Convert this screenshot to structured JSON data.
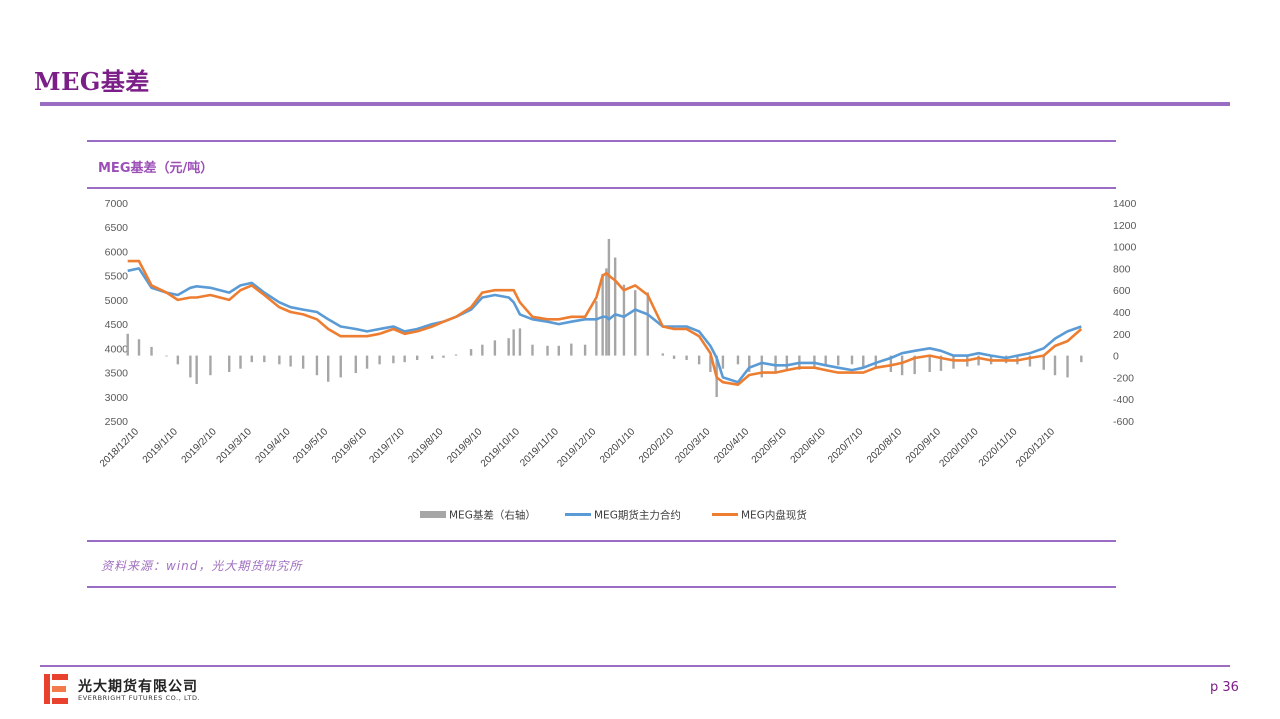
{
  "page": {
    "title": "MEG基差",
    "source": "资料来源：wind，光大期货研究所",
    "page_number": "p 36",
    "company_cn": "光大期货有限公司",
    "company_en": "EVERBRIGHT FUTURES CO., LTD."
  },
  "colors": {
    "title": "#7b1e87",
    "rule": "#9b6cc4",
    "basis": "#a6a6a6",
    "futures": "#5b9bd5",
    "spot": "#ed7d31",
    "logo": "#e8422f"
  },
  "chart_data": {
    "type": "line",
    "title": "MEG基差（元/吨）",
    "x_tick_labels": [
      "2018/12/10",
      "2019/1/10",
      "2019/2/10",
      "2019/3/10",
      "2019/4/10",
      "2019/5/10",
      "2019/6/10",
      "2019/7/10",
      "2019/8/10",
      "2019/9/10",
      "2019/10/10",
      "2019/11/10",
      "2019/12/10",
      "2020/1/10",
      "2020/2/10",
      "2020/3/10",
      "2020/4/10",
      "2020/5/10",
      "2020/6/10",
      "2020/7/10",
      "2020/8/10",
      "2020/9/10",
      "2020/10/10",
      "2020/11/10",
      "2020/12/10"
    ],
    "y_left": {
      "min": 2500,
      "max": 7000,
      "ticks": [
        2500,
        3000,
        3500,
        4000,
        4500,
        5000,
        5500,
        6000,
        6500,
        7000
      ]
    },
    "y_right": {
      "min": -600,
      "max": 1400,
      "ticks": [
        -600,
        -400,
        -200,
        0,
        200,
        400,
        600,
        800,
        1000,
        1200,
        1400
      ]
    },
    "legend_position": "bottom",
    "series": [
      {
        "name": "MEG基差（右轴）",
        "type": "bar",
        "axis": "right",
        "points": [
          [
            "2018-12-01",
            200
          ],
          [
            "2018-12-10",
            150
          ],
          [
            "2018-12-20",
            80
          ],
          [
            "2019-01-01",
            0
          ],
          [
            "2019-01-10",
            -80
          ],
          [
            "2019-01-20",
            -200
          ],
          [
            "2019-01-25",
            -260
          ],
          [
            "2019-02-05",
            -180
          ],
          [
            "2019-02-20",
            -150
          ],
          [
            "2019-03-01",
            -120
          ],
          [
            "2019-03-10",
            -60
          ],
          [
            "2019-03-20",
            -60
          ],
          [
            "2019-04-01",
            -80
          ],
          [
            "2019-04-10",
            -100
          ],
          [
            "2019-04-20",
            -120
          ],
          [
            "2019-05-01",
            -180
          ],
          [
            "2019-05-10",
            -240
          ],
          [
            "2019-05-20",
            -200
          ],
          [
            "2019-06-01",
            -160
          ],
          [
            "2019-06-10",
            -120
          ],
          [
            "2019-06-20",
            -80
          ],
          [
            "2019-07-01",
            -70
          ],
          [
            "2019-07-10",
            -60
          ],
          [
            "2019-07-20",
            -40
          ],
          [
            "2019-08-01",
            -30
          ],
          [
            "2019-08-10",
            -20
          ],
          [
            "2019-08-20",
            10
          ],
          [
            "2019-09-01",
            60
          ],
          [
            "2019-09-10",
            100
          ],
          [
            "2019-09-20",
            140
          ],
          [
            "2019-10-01",
            160
          ],
          [
            "2019-10-05",
            240
          ],
          [
            "2019-10-10",
            250
          ],
          [
            "2019-10-20",
            100
          ],
          [
            "2019-11-01",
            90
          ],
          [
            "2019-11-10",
            90
          ],
          [
            "2019-11-20",
            110
          ],
          [
            "2019-12-01",
            100
          ],
          [
            "2019-12-10",
            500
          ],
          [
            "2019-12-15",
            750
          ],
          [
            "2019-12-18",
            800
          ],
          [
            "2019-12-20",
            1070
          ],
          [
            "2019-12-25",
            900
          ],
          [
            "2020-01-01",
            650
          ],
          [
            "2020-01-10",
            600
          ],
          [
            "2020-01-20",
            580
          ],
          [
            "2020-02-01",
            20
          ],
          [
            "2020-02-10",
            -30
          ],
          [
            "2020-02-20",
            -40
          ],
          [
            "2020-03-01",
            -80
          ],
          [
            "2020-03-10",
            -150
          ],
          [
            "2020-03-15",
            -380
          ],
          [
            "2020-03-20",
            -120
          ],
          [
            "2020-04-01",
            -80
          ],
          [
            "2020-04-10",
            -150
          ],
          [
            "2020-04-20",
            -200
          ],
          [
            "2020-05-01",
            -150
          ],
          [
            "2020-05-10",
            -140
          ],
          [
            "2020-05-20",
            -130
          ],
          [
            "2020-06-01",
            -110
          ],
          [
            "2020-06-10",
            -100
          ],
          [
            "2020-06-20",
            -90
          ],
          [
            "2020-07-01",
            -80
          ],
          [
            "2020-07-10",
            -100
          ],
          [
            "2020-07-20",
            -110
          ],
          [
            "2020-08-01",
            -150
          ],
          [
            "2020-08-10",
            -180
          ],
          [
            "2020-08-20",
            -170
          ],
          [
            "2020-09-01",
            -150
          ],
          [
            "2020-09-10",
            -140
          ],
          [
            "2020-09-20",
            -120
          ],
          [
            "2020-10-01",
            -100
          ],
          [
            "2020-10-10",
            -90
          ],
          [
            "2020-10-20",
            -80
          ],
          [
            "2020-11-01",
            -70
          ],
          [
            "2020-11-10",
            -80
          ],
          [
            "2020-11-20",
            -100
          ],
          [
            "2020-12-01",
            -130
          ],
          [
            "2020-12-10",
            -180
          ],
          [
            "2020-12-20",
            -200
          ],
          [
            "2020-12-31",
            -60
          ]
        ]
      },
      {
        "name": "MEG期货主力合约",
        "type": "line",
        "axis": "left",
        "points": [
          [
            "2018-12-01",
            5600
          ],
          [
            "2018-12-10",
            5650
          ],
          [
            "2018-12-20",
            5250
          ],
          [
            "2019-01-01",
            5150
          ],
          [
            "2019-01-10",
            5100
          ],
          [
            "2019-01-20",
            5250
          ],
          [
            "2019-01-25",
            5280
          ],
          [
            "2019-02-05",
            5250
          ],
          [
            "2019-02-20",
            5150
          ],
          [
            "2019-03-01",
            5300
          ],
          [
            "2019-03-10",
            5350
          ],
          [
            "2019-03-20",
            5150
          ],
          [
            "2019-04-01",
            4950
          ],
          [
            "2019-04-10",
            4850
          ],
          [
            "2019-04-20",
            4800
          ],
          [
            "2019-05-01",
            4750
          ],
          [
            "2019-05-10",
            4600
          ],
          [
            "2019-05-20",
            4450
          ],
          [
            "2019-06-01",
            4400
          ],
          [
            "2019-06-10",
            4350
          ],
          [
            "2019-06-20",
            4400
          ],
          [
            "2019-07-01",
            4450
          ],
          [
            "2019-07-10",
            4350
          ],
          [
            "2019-07-20",
            4400
          ],
          [
            "2019-08-01",
            4500
          ],
          [
            "2019-08-10",
            4550
          ],
          [
            "2019-08-20",
            4650
          ],
          [
            "2019-09-01",
            4800
          ],
          [
            "2019-09-10",
            5050
          ],
          [
            "2019-09-20",
            5100
          ],
          [
            "2019-10-01",
            5050
          ],
          [
            "2019-10-05",
            4950
          ],
          [
            "2019-10-10",
            4700
          ],
          [
            "2019-10-20",
            4600
          ],
          [
            "2019-11-01",
            4550
          ],
          [
            "2019-11-10",
            4500
          ],
          [
            "2019-11-20",
            4550
          ],
          [
            "2019-12-01",
            4600
          ],
          [
            "2019-12-10",
            4600
          ],
          [
            "2019-12-15",
            4650
          ],
          [
            "2019-12-18",
            4650
          ],
          [
            "2019-12-20",
            4600
          ],
          [
            "2019-12-25",
            4700
          ],
          [
            "2020-01-01",
            4650
          ],
          [
            "2020-01-10",
            4800
          ],
          [
            "2020-01-20",
            4700
          ],
          [
            "2020-02-01",
            4450
          ],
          [
            "2020-02-10",
            4450
          ],
          [
            "2020-02-20",
            4450
          ],
          [
            "2020-03-01",
            4350
          ],
          [
            "2020-03-10",
            4050
          ],
          [
            "2020-03-15",
            3800
          ],
          [
            "2020-03-20",
            3400
          ],
          [
            "2020-04-01",
            3300
          ],
          [
            "2020-04-10",
            3600
          ],
          [
            "2020-04-20",
            3700
          ],
          [
            "2020-05-01",
            3650
          ],
          [
            "2020-05-10",
            3650
          ],
          [
            "2020-05-20",
            3700
          ],
          [
            "2020-06-01",
            3700
          ],
          [
            "2020-06-10",
            3650
          ],
          [
            "2020-06-20",
            3600
          ],
          [
            "2020-07-01",
            3550
          ],
          [
            "2020-07-10",
            3600
          ],
          [
            "2020-07-20",
            3700
          ],
          [
            "2020-08-01",
            3800
          ],
          [
            "2020-08-10",
            3900
          ],
          [
            "2020-08-20",
            3950
          ],
          [
            "2020-09-01",
            4000
          ],
          [
            "2020-09-10",
            3950
          ],
          [
            "2020-09-20",
            3850
          ],
          [
            "2020-10-01",
            3850
          ],
          [
            "2020-10-10",
            3900
          ],
          [
            "2020-10-20",
            3850
          ],
          [
            "2020-11-01",
            3800
          ],
          [
            "2020-11-10",
            3850
          ],
          [
            "2020-11-20",
            3900
          ],
          [
            "2020-12-01",
            4000
          ],
          [
            "2020-12-10",
            4200
          ],
          [
            "2020-12-20",
            4350
          ],
          [
            "2020-12-31",
            4450
          ]
        ]
      },
      {
        "name": "MEG内盘现货",
        "type": "line",
        "axis": "left",
        "points": [
          [
            "2018-12-01",
            5800
          ],
          [
            "2018-12-10",
            5800
          ],
          [
            "2018-12-20",
            5300
          ],
          [
            "2019-01-01",
            5150
          ],
          [
            "2019-01-10",
            5000
          ],
          [
            "2019-01-20",
            5050
          ],
          [
            "2019-01-25",
            5050
          ],
          [
            "2019-02-05",
            5100
          ],
          [
            "2019-02-20",
            5000
          ],
          [
            "2019-03-01",
            5200
          ],
          [
            "2019-03-10",
            5300
          ],
          [
            "2019-03-20",
            5100
          ],
          [
            "2019-04-01",
            4850
          ],
          [
            "2019-04-10",
            4750
          ],
          [
            "2019-04-20",
            4700
          ],
          [
            "2019-05-01",
            4600
          ],
          [
            "2019-05-10",
            4400
          ],
          [
            "2019-05-20",
            4250
          ],
          [
            "2019-06-01",
            4250
          ],
          [
            "2019-06-10",
            4250
          ],
          [
            "2019-06-20",
            4300
          ],
          [
            "2019-07-01",
            4400
          ],
          [
            "2019-07-10",
            4300
          ],
          [
            "2019-07-20",
            4350
          ],
          [
            "2019-08-01",
            4450
          ],
          [
            "2019-08-10",
            4550
          ],
          [
            "2019-08-20",
            4650
          ],
          [
            "2019-09-01",
            4850
          ],
          [
            "2019-09-10",
            5150
          ],
          [
            "2019-09-20",
            5200
          ],
          [
            "2019-10-01",
            5200
          ],
          [
            "2019-10-05",
            5200
          ],
          [
            "2019-10-10",
            4950
          ],
          [
            "2019-10-20",
            4650
          ],
          [
            "2019-11-01",
            4600
          ],
          [
            "2019-11-10",
            4600
          ],
          [
            "2019-11-20",
            4650
          ],
          [
            "2019-12-01",
            4650
          ],
          [
            "2019-12-10",
            5050
          ],
          [
            "2019-12-15",
            5500
          ],
          [
            "2019-12-18",
            5550
          ],
          [
            "2019-12-20",
            5500
          ],
          [
            "2019-12-25",
            5400
          ],
          [
            "2020-01-01",
            5200
          ],
          [
            "2020-01-10",
            5300
          ],
          [
            "2020-01-20",
            5100
          ],
          [
            "2020-02-01",
            4450
          ],
          [
            "2020-02-10",
            4400
          ],
          [
            "2020-02-20",
            4400
          ],
          [
            "2020-03-01",
            4250
          ],
          [
            "2020-03-10",
            3900
          ],
          [
            "2020-03-15",
            3400
          ],
          [
            "2020-03-20",
            3300
          ],
          [
            "2020-04-01",
            3250
          ],
          [
            "2020-04-10",
            3450
          ],
          [
            "2020-04-20",
            3500
          ],
          [
            "2020-05-01",
            3500
          ],
          [
            "2020-05-10",
            3550
          ],
          [
            "2020-05-20",
            3600
          ],
          [
            "2020-06-01",
            3600
          ],
          [
            "2020-06-10",
            3550
          ],
          [
            "2020-06-20",
            3500
          ],
          [
            "2020-07-01",
            3500
          ],
          [
            "2020-07-10",
            3500
          ],
          [
            "2020-07-20",
            3600
          ],
          [
            "2020-08-01",
            3650
          ],
          [
            "2020-08-10",
            3700
          ],
          [
            "2020-08-20",
            3800
          ],
          [
            "2020-09-01",
            3850
          ],
          [
            "2020-09-10",
            3800
          ],
          [
            "2020-09-20",
            3750
          ],
          [
            "2020-10-01",
            3750
          ],
          [
            "2020-10-10",
            3800
          ],
          [
            "2020-10-20",
            3750
          ],
          [
            "2020-11-01",
            3750
          ],
          [
            "2020-11-10",
            3750
          ],
          [
            "2020-11-20",
            3800
          ],
          [
            "2020-12-01",
            3850
          ],
          [
            "2020-12-10",
            4050
          ],
          [
            "2020-12-20",
            4150
          ],
          [
            "2020-12-31",
            4400
          ]
        ]
      }
    ]
  }
}
